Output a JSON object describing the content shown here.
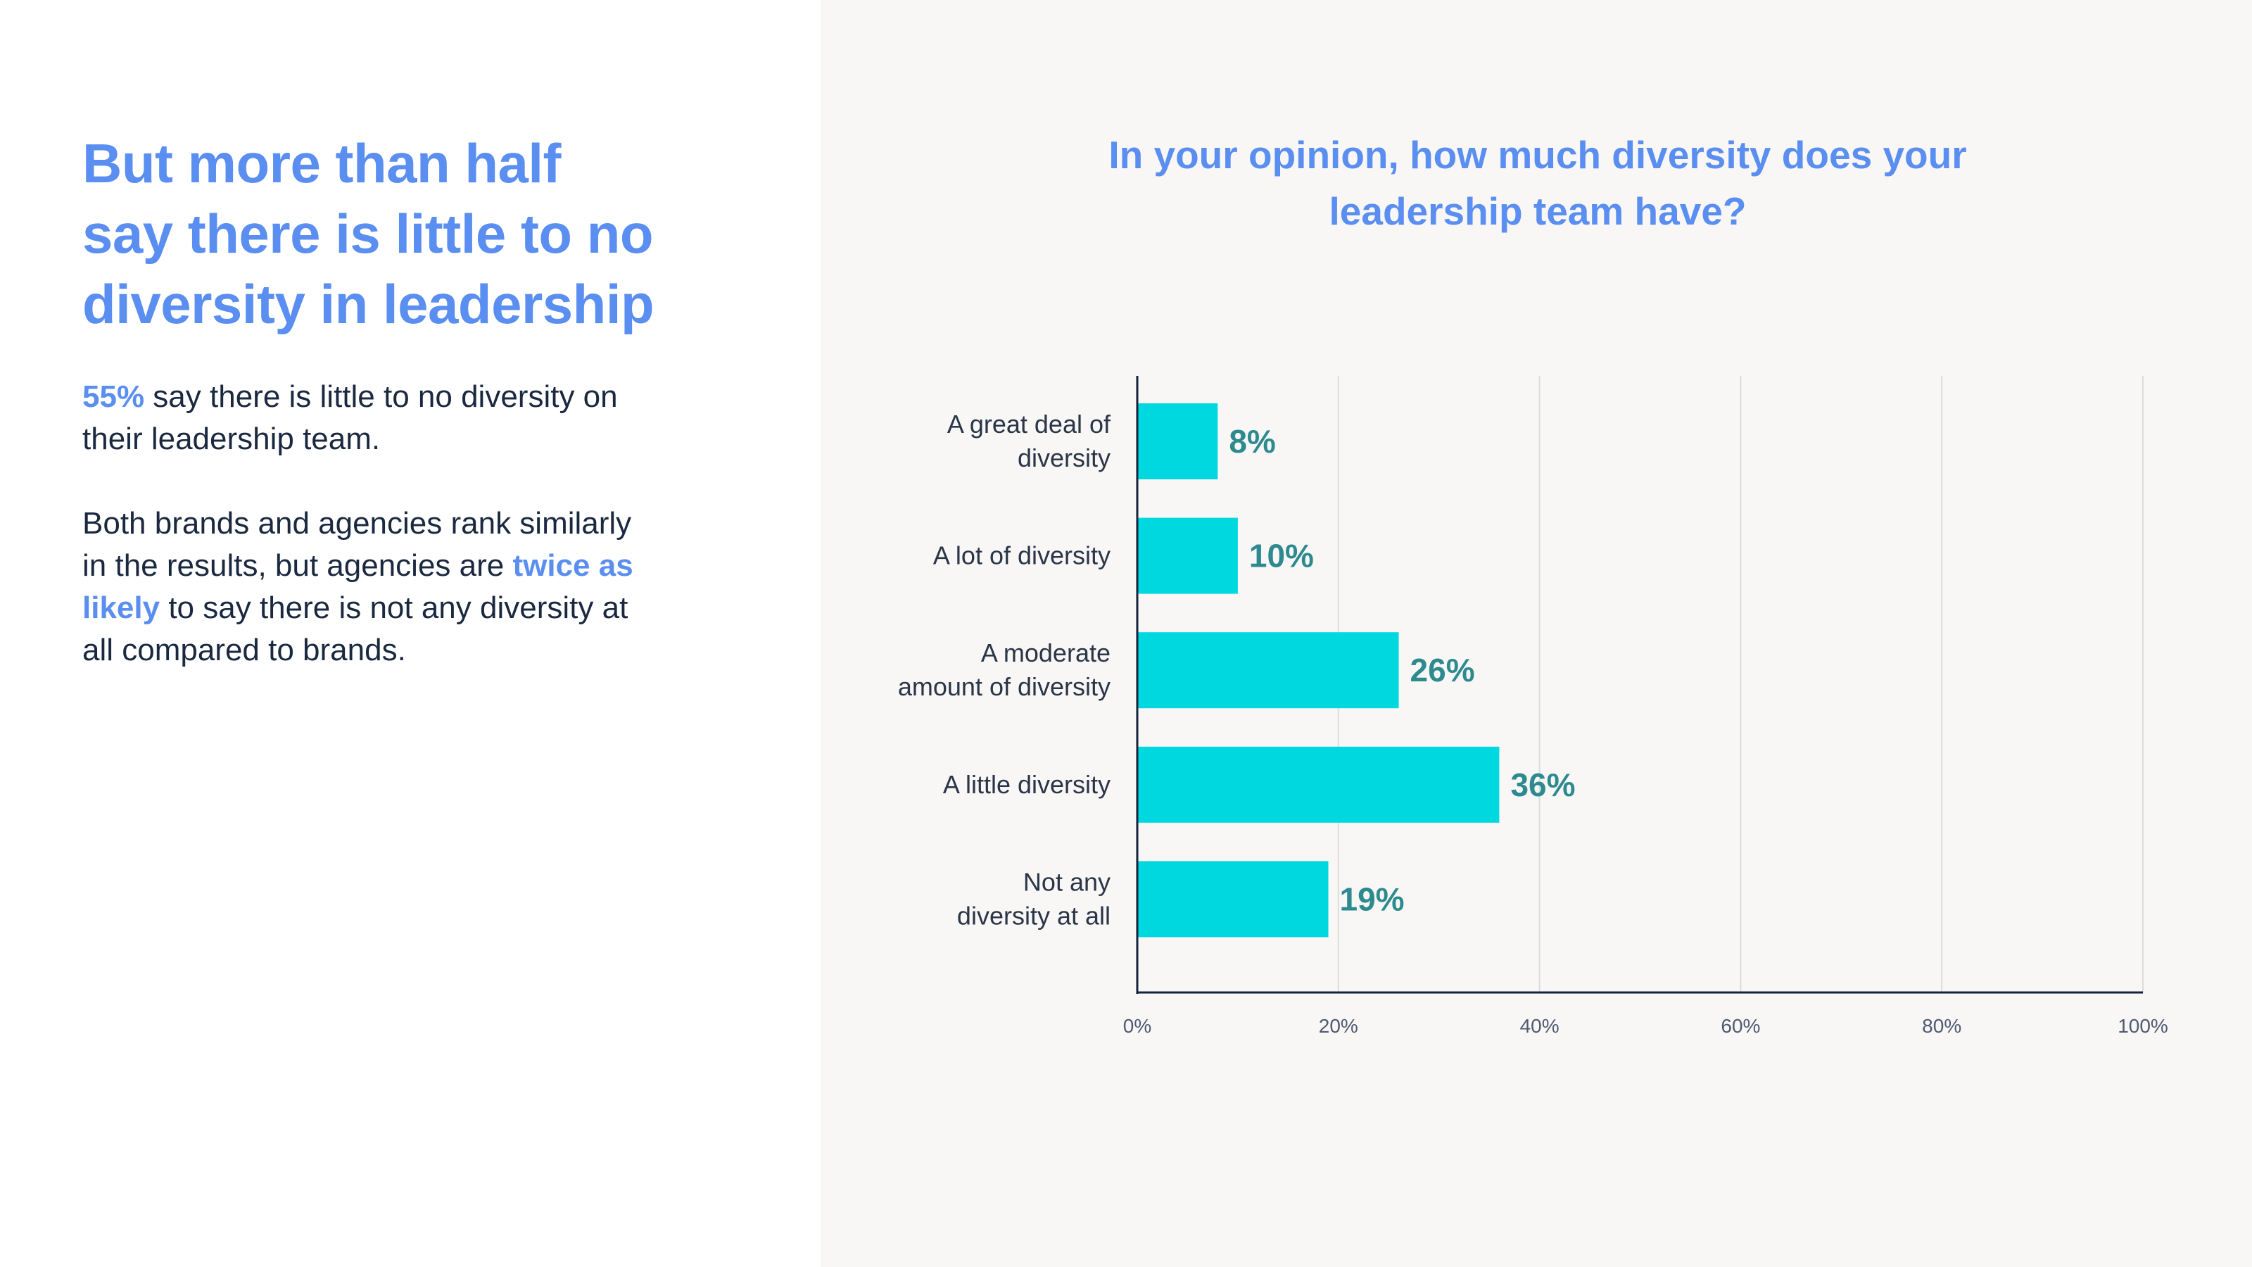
{
  "left": {
    "headline_lines": [
      "But more than half",
      "say there is little to no",
      "diversity in leadership"
    ],
    "p1": {
      "highlight": "55%",
      "rest_line1": " say there is little to no diversity on",
      "rest_line2": "their leadership team."
    },
    "p2": {
      "line1": "Both brands and agencies rank similarly",
      "line2_pre": "in the results, but agencies are ",
      "line2_hl": "twice as",
      "line3_hl": "likely",
      "line3_post": " to say there is not any diversity at",
      "line4": "all compared to brands."
    }
  },
  "chart_data": {
    "type": "bar",
    "orientation": "horizontal",
    "title_lines": [
      "In your opinion, how much diversity does your",
      "leadership team have?"
    ],
    "categories": [
      [
        "A great deal of",
        "diversity"
      ],
      [
        "A lot of diversity"
      ],
      [
        "A moderate",
        "amount of diversity"
      ],
      [
        "A little diversity"
      ],
      [
        "Not any",
        "diversity at all"
      ]
    ],
    "values": [
      8,
      10,
      26,
      36,
      19
    ],
    "value_labels": [
      "8%",
      "10%",
      "26%",
      "36%",
      "19%"
    ],
    "xlim": [
      0,
      100
    ],
    "xticks": [
      0,
      20,
      40,
      60,
      80,
      100
    ],
    "xtick_labels": [
      "0%",
      "20%",
      "40%",
      "60%",
      "80%",
      "100%"
    ],
    "grid": true,
    "bar_color": "#00d8e0",
    "value_label_color": "#2d8a8f"
  }
}
